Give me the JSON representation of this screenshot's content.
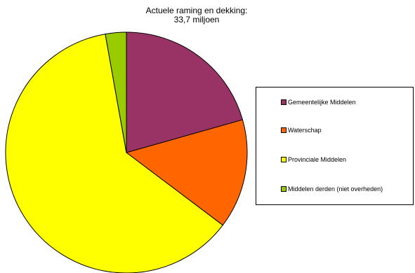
{
  "chart_data": {
    "type": "pie",
    "title_line1": "Actuele raming en dekking:",
    "title_line2": "33,7 miljoen",
    "slices": [
      {
        "name": "Gemeentelijke Middelen",
        "value": 20.6,
        "color": "#993366"
      },
      {
        "name": "Waterschap",
        "value": 14.7,
        "color": "#FF6600"
      },
      {
        "name": "Provinciale Middelen",
        "value": 61.9,
        "color": "#FFFF00"
      },
      {
        "name": "Middelen derden (niet overheden)",
        "value": 2.8,
        "color": "#99CC00"
      }
    ],
    "legend": {
      "placement": "right",
      "items": [
        "Gemeentelijke Middelen",
        "Waterschap",
        "Provinciale Middelen",
        "Middelen derden (niet overheden)"
      ]
    },
    "value_unit": "percent of total"
  }
}
